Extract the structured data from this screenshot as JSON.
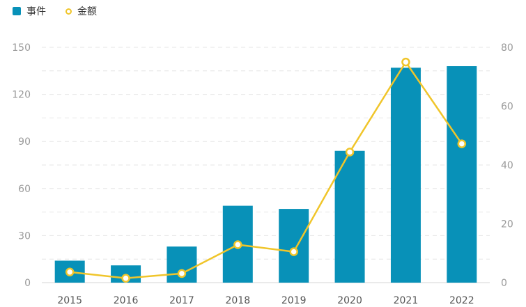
{
  "chart_data": {
    "type": "bar",
    "categories": [
      "2015",
      "2016",
      "2017",
      "2018",
      "2019",
      "2020",
      "2021",
      "2022"
    ],
    "series": [
      {
        "name": "事件",
        "type": "bar",
        "axis": "left",
        "values": [
          14,
          11,
          23,
          49,
          47,
          84,
          137,
          138
        ]
      },
      {
        "name": "金额",
        "type": "line",
        "axis": "right",
        "values": [
          3.6,
          1.5,
          3.1,
          12.9,
          10.5,
          44.4,
          75,
          47.2
        ]
      }
    ],
    "y_left": {
      "range": [
        0,
        150
      ],
      "ticks": [
        0,
        30,
        60,
        90,
        120,
        150
      ]
    },
    "y_right": {
      "range": [
        0,
        80
      ],
      "ticks": [
        0,
        20,
        40,
        60,
        80
      ]
    },
    "grid": true,
    "legend_position": "top-left",
    "colors": {
      "bar": "#0891b8",
      "line": "#f0c52a"
    }
  }
}
